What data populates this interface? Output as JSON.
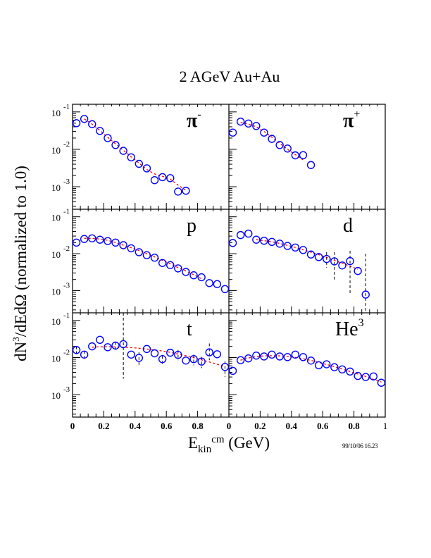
{
  "chart_data": {
    "type": "scatter",
    "title": "2 AGeV Au+Au",
    "xlabel_main": "E",
    "xlabel_sub": "kin",
    "xlabel_sup": "cm",
    "xlabel_unit": " (GeV)",
    "ylabel_pre": "dN",
    "ylabel_sup": "3",
    "ylabel_post": "/dEdΩ (normalized to 1.0)",
    "timestamp": "99/10/06   16.23",
    "yscale": "log",
    "ylim": [
      0.00025,
      0.16
    ],
    "xlim": [
      0,
      1
    ],
    "grid": false,
    "ytick_labels": [
      {
        "value": 0.1,
        "base": "10",
        "exp": "-1"
      },
      {
        "value": 0.01,
        "base": "10",
        "exp": "-2"
      },
      {
        "value": 0.001,
        "base": "10",
        "exp": "-3"
      }
    ],
    "xtick_labels_left": [
      "0",
      "0.2",
      "0.4",
      "0.6",
      "0.8",
      "0"
    ],
    "xtick_labels_right": [
      "0.2",
      "0.4",
      "0.6",
      "0.8",
      "1"
    ],
    "marker_color": "#0000ff",
    "fit_color": "#ff0000",
    "panels": [
      {
        "name": "pi-minus",
        "label": "π",
        "label_sup": "-",
        "row": 0,
        "col": 0,
        "x": [
          0.025,
          0.075,
          0.125,
          0.175,
          0.225,
          0.275,
          0.325,
          0.375,
          0.425,
          0.475,
          0.525,
          0.575,
          0.625,
          0.675,
          0.725
        ],
        "y": [
          0.05,
          0.065,
          0.047,
          0.031,
          0.02,
          0.013,
          0.0091,
          0.0061,
          0.0041,
          0.0031,
          0.0015,
          0.0018,
          0.0017,
          0.00074,
          0.00078
        ],
        "fit": {
          "x": [
            0.075,
            0.125,
            0.175,
            0.225,
            0.275,
            0.325,
            0.375,
            0.425,
            0.475,
            0.525,
            0.575,
            0.625,
            0.675,
            0.725
          ],
          "y": [
            0.065,
            0.047,
            0.032,
            0.021,
            0.014,
            0.0094,
            0.0063,
            0.0043,
            0.0029,
            0.0022,
            0.0019,
            0.0016,
            0.0011,
            0.0008
          ]
        },
        "errors": []
      },
      {
        "name": "pi-plus",
        "label": "π",
        "label_sup": "+",
        "row": 0,
        "col": 1,
        "x": [
          0.025,
          0.075,
          0.125,
          0.175,
          0.225,
          0.275,
          0.325,
          0.375,
          0.425,
          0.475,
          0.525
        ],
        "y": [
          0.028,
          0.055,
          0.049,
          0.042,
          0.028,
          0.019,
          0.013,
          0.0105,
          0.0069,
          0.007,
          0.0038
        ],
        "fit": {
          "x": [
            0.075,
            0.125,
            0.175,
            0.225,
            0.275,
            0.325,
            0.375,
            0.425,
            0.475
          ],
          "y": [
            0.052,
            0.047,
            0.04,
            0.03,
            0.021,
            0.0145,
            0.01,
            0.0072,
            0.0052
          ]
        },
        "errors": []
      },
      {
        "name": "proton",
        "label": "p",
        "label_sup": "",
        "row": 1,
        "col": 0,
        "x": [
          0.025,
          0.075,
          0.125,
          0.175,
          0.225,
          0.275,
          0.325,
          0.375,
          0.425,
          0.475,
          0.525,
          0.575,
          0.625,
          0.675,
          0.725,
          0.775,
          0.825,
          0.875,
          0.925,
          0.975
        ],
        "y": [
          0.02,
          0.025,
          0.026,
          0.024,
          0.022,
          0.02,
          0.017,
          0.014,
          0.011,
          0.0091,
          0.0078,
          0.0056,
          0.0049,
          0.004,
          0.0032,
          0.0026,
          0.0023,
          0.0016,
          0.0015,
          0.0011
        ],
        "fit": {
          "x": [
            0.075,
            0.125,
            0.175,
            0.225,
            0.275,
            0.325,
            0.375,
            0.425,
            0.475,
            0.525,
            0.575,
            0.625,
            0.675,
            0.725,
            0.775,
            0.825
          ],
          "y": [
            0.026,
            0.026,
            0.025,
            0.023,
            0.02,
            0.017,
            0.0145,
            0.0122,
            0.01,
            0.0082,
            0.0066,
            0.0053,
            0.0042,
            0.0034,
            0.0027,
            0.0021
          ]
        },
        "errors": []
      },
      {
        "name": "deuteron",
        "label": "d",
        "label_sup": "",
        "row": 1,
        "col": 1,
        "x": [
          0.025,
          0.075,
          0.125,
          0.175,
          0.225,
          0.275,
          0.325,
          0.375,
          0.425,
          0.475,
          0.525,
          0.575,
          0.625,
          0.675,
          0.725,
          0.775,
          0.825,
          0.875
        ],
        "y": [
          0.0195,
          0.032,
          0.035,
          0.024,
          0.0224,
          0.0209,
          0.0187,
          0.0162,
          0.0147,
          0.0126,
          0.0095,
          0.0081,
          0.0072,
          0.0062,
          0.0048,
          0.0063,
          0.0034,
          0.00078
        ],
        "fit": {
          "x": [
            0.175,
            0.225,
            0.275,
            0.325,
            0.375,
            0.425,
            0.475,
            0.525,
            0.575,
            0.625,
            0.675,
            0.725,
            0.775,
            0.825
          ],
          "y": [
            0.024,
            0.0225,
            0.021,
            0.019,
            0.0168,
            0.0148,
            0.0128,
            0.011,
            0.0094,
            0.0079,
            0.0066,
            0.0055,
            0.0046,
            0.0038
          ]
        },
        "errors": [
          {
            "x": 0.625,
            "lo": 0.0042,
            "hi": 0.011
          },
          {
            "x": 0.675,
            "lo": 0.002,
            "hi": 0.011
          },
          {
            "x": 0.775,
            "lo": 0.00085,
            "hi": 0.012
          },
          {
            "x": 0.875,
            "lo": 0.00025,
            "hi": 0.01
          }
        ]
      },
      {
        "name": "triton",
        "label": "t",
        "label_sup": "",
        "row": 2,
        "col": 0,
        "x": [
          0.025,
          0.075,
          0.125,
          0.175,
          0.225,
          0.275,
          0.325,
          0.375,
          0.425,
          0.475,
          0.525,
          0.575,
          0.625,
          0.675,
          0.725,
          0.775,
          0.825,
          0.875,
          0.925,
          0.975
        ],
        "y": [
          0.016,
          0.012,
          0.02,
          0.03,
          0.019,
          0.021,
          0.023,
          0.012,
          0.0098,
          0.017,
          0.013,
          0.0091,
          0.0135,
          0.0118,
          0.0083,
          0.0091,
          0.0078,
          0.0138,
          0.0123,
          0.0056
        ],
        "fit": {
          "x": [
            0.125,
            0.175,
            0.225,
            0.275,
            0.325,
            0.375,
            0.425,
            0.475,
            0.525,
            0.575,
            0.625,
            0.675,
            0.725,
            0.775,
            0.825,
            0.875,
            0.925,
            0.975
          ],
          "y": [
            0.019,
            0.0195,
            0.0195,
            0.0193,
            0.019,
            0.0185,
            0.0178,
            0.017,
            0.016,
            0.015,
            0.0138,
            0.0125,
            0.0112,
            0.0099,
            0.0087,
            0.0076,
            0.0066,
            0.0057
          ]
        },
        "errors": [
          {
            "x": 0.025,
            "lo": 0.012,
            "hi": 0.02
          },
          {
            "x": 0.075,
            "lo": 0.0085,
            "hi": 0.015
          },
          {
            "x": 0.275,
            "lo": 0.016,
            "hi": 0.026
          },
          {
            "x": 0.325,
            "lo": 0.0027,
            "hi": 0.16
          },
          {
            "x": 0.425,
            "lo": 0.0059,
            "hi": 0.014
          },
          {
            "x": 0.575,
            "lo": 0.0065,
            "hi": 0.011
          },
          {
            "x": 0.675,
            "lo": 0.0085,
            "hi": 0.016
          },
          {
            "x": 0.775,
            "lo": 0.0062,
            "hi": 0.012
          },
          {
            "x": 0.825,
            "lo": 0.0052,
            "hi": 0.0105
          },
          {
            "x": 0.875,
            "lo": 0.0085,
            "hi": 0.024
          },
          {
            "x": 0.975,
            "lo": 0.003,
            "hi": 0.008
          }
        ]
      },
      {
        "name": "helium3",
        "label": "He",
        "label_sup": "3",
        "row": 2,
        "col": 1,
        "x": [
          0.025,
          0.075,
          0.125,
          0.175,
          0.225,
          0.275,
          0.325,
          0.375,
          0.425,
          0.475,
          0.525,
          0.575,
          0.625,
          0.675,
          0.725,
          0.775,
          0.825,
          0.875,
          0.925,
          0.975
        ],
        "y": [
          0.0044,
          0.0085,
          0.0095,
          0.0113,
          0.0107,
          0.012,
          0.0107,
          0.0103,
          0.012,
          0.0103,
          0.0083,
          0.0062,
          0.0066,
          0.0055,
          0.0048,
          0.0042,
          0.0032,
          0.003,
          0.0031,
          0.0021
        ],
        "fit": {
          "x": [
            0.075,
            0.125,
            0.175,
            0.225,
            0.275,
            0.325,
            0.375,
            0.425,
            0.475,
            0.525,
            0.575,
            0.625,
            0.675,
            0.725,
            0.775,
            0.825,
            0.875,
            0.925,
            0.975
          ],
          "y": [
            0.0085,
            0.0098,
            0.0106,
            0.0111,
            0.0112,
            0.0111,
            0.0107,
            0.0101,
            0.0093,
            0.0084,
            0.0074,
            0.0065,
            0.0057,
            0.0049,
            0.0042,
            0.0036,
            0.0031,
            0.0026,
            0.0022
          ]
        },
        "errors": []
      }
    ]
  }
}
